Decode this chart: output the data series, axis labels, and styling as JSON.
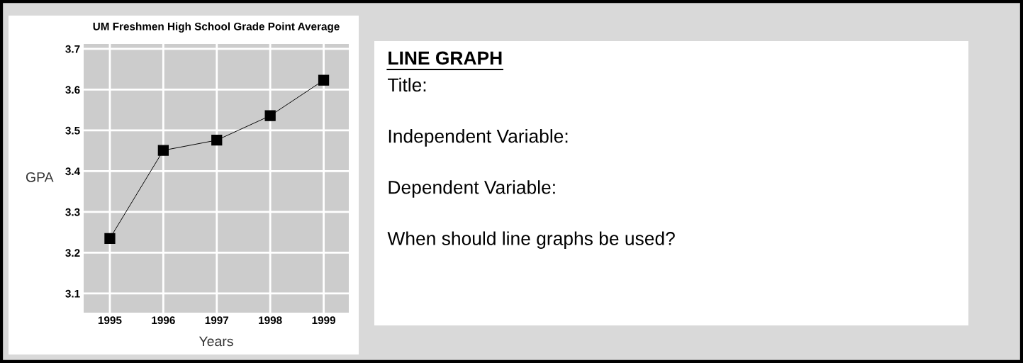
{
  "chart_data": [
    {
      "type": "line",
      "title": "UM Freshmen High School Grade Point Average",
      "xlabel": "Years",
      "ylabel": "GPA",
      "categories": [
        "1995",
        "1996",
        "1997",
        "1998",
        "1999"
      ],
      "series": [
        {
          "color": "#000000",
          "values": [
            3.235,
            3.451,
            3.476,
            3.536,
            3.623
          ]
        }
      ],
      "ylim": [
        3.053,
        3.712
      ],
      "yticks": [
        3.1,
        3.2,
        3.3,
        3.4,
        3.5,
        3.6,
        3.7
      ],
      "grid": true,
      "marker": "square",
      "line_style": "solid"
    },
    {
      "type": "other",
      "title": "LINE GRAPH",
      "annotations": [
        "Title:",
        "Independent Variable:",
        "Dependent Variable:",
        "When should line graphs be used?"
      ]
    }
  ]
}
